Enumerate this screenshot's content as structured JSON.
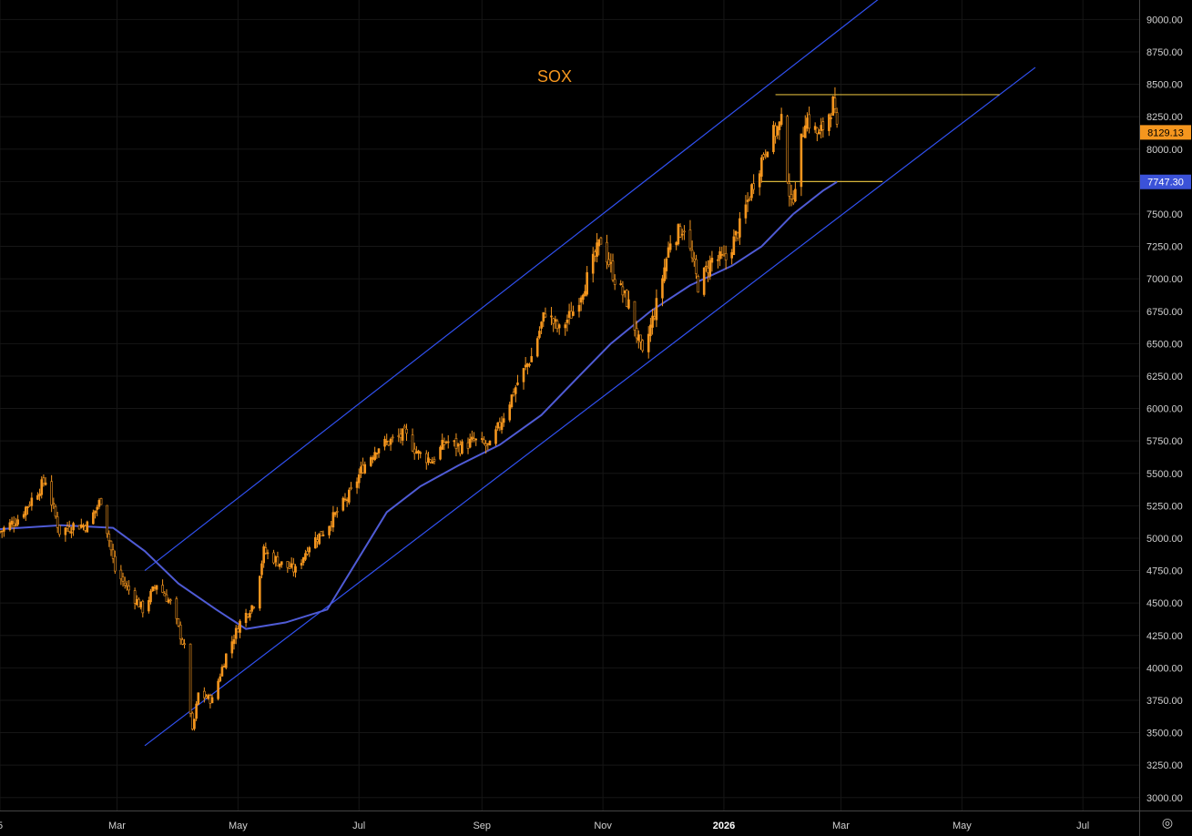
{
  "chart_data": {
    "type": "candlestick",
    "title": "SOX",
    "ylim": [
      2900,
      9150
    ],
    "y_ticks": [
      "3000.00",
      "3250.00",
      "3500.00",
      "3750.00",
      "4000.00",
      "4250.00",
      "4500.00",
      "4750.00",
      "5000.00",
      "5250.00",
      "5500.00",
      "5750.00",
      "6000.00",
      "6250.00",
      "6500.00",
      "6750.00",
      "7000.00",
      "7250.00",
      "7500.00",
      "7750.00",
      "8000.00",
      "8250.00",
      "8500.00",
      "8750.00",
      "9000.00"
    ],
    "x_range": [
      "2025-01-01",
      "2026-07-31"
    ],
    "x_ticks": [
      {
        "date": "2025-01-01",
        "label": "5",
        "bold": false
      },
      {
        "date": "2025-03-01",
        "label": "Mar",
        "bold": false
      },
      {
        "date": "2025-05-01",
        "label": "May",
        "bold": false
      },
      {
        "date": "2025-07-01",
        "label": "Jul",
        "bold": false
      },
      {
        "date": "2025-09-01",
        "label": "Sep",
        "bold": false
      },
      {
        "date": "2025-11-01",
        "label": "Nov",
        "bold": false
      },
      {
        "date": "2026-01-01",
        "label": "2026",
        "bold": true
      },
      {
        "date": "2026-03-01",
        "label": "Mar",
        "bold": false
      },
      {
        "date": "2026-05-01",
        "label": "May",
        "bold": false
      },
      {
        "date": "2026-07-01",
        "label": "Jul",
        "bold": false
      }
    ],
    "grid": true,
    "series": [
      {
        "kind": "price",
        "color": "#f5961e",
        "points": [
          [
            "2025-01-01",
            5050
          ],
          [
            "2025-01-10",
            5150
          ],
          [
            "2025-01-17",
            5300
          ],
          [
            "2025-01-24",
            5450
          ],
          [
            "2025-01-31",
            5050
          ],
          [
            "2025-02-07",
            5100
          ],
          [
            "2025-02-14",
            5100
          ],
          [
            "2025-02-21",
            5300
          ],
          [
            "2025-02-28",
            4750
          ],
          [
            "2025-03-07",
            4600
          ],
          [
            "2025-03-14",
            4450
          ],
          [
            "2025-03-21",
            4650
          ],
          [
            "2025-03-28",
            4500
          ],
          [
            "2025-04-04",
            4150
          ],
          [
            "2025-04-08",
            3500
          ],
          [
            "2025-04-11",
            3800
          ],
          [
            "2025-04-18",
            3750
          ],
          [
            "2025-04-25",
            4100
          ],
          [
            "2025-05-02",
            4350
          ],
          [
            "2025-05-09",
            4500
          ],
          [
            "2025-05-14",
            4900
          ],
          [
            "2025-05-23",
            4800
          ],
          [
            "2025-05-30",
            4750
          ],
          [
            "2025-06-06",
            4950
          ],
          [
            "2025-06-13",
            5050
          ],
          [
            "2025-06-20",
            5200
          ],
          [
            "2025-06-27",
            5350
          ],
          [
            "2025-07-03",
            5550
          ],
          [
            "2025-07-10",
            5700
          ],
          [
            "2025-07-17",
            5750
          ],
          [
            "2025-07-24",
            5800
          ],
          [
            "2025-07-31",
            5650
          ],
          [
            "2025-08-07",
            5600
          ],
          [
            "2025-08-14",
            5750
          ],
          [
            "2025-08-21",
            5700
          ],
          [
            "2025-08-28",
            5750
          ],
          [
            "2025-09-05",
            5700
          ],
          [
            "2025-09-12",
            5950
          ],
          [
            "2025-09-19",
            6200
          ],
          [
            "2025-09-26",
            6400
          ],
          [
            "2025-10-03",
            6750
          ],
          [
            "2025-10-10",
            6600
          ],
          [
            "2025-10-17",
            6750
          ],
          [
            "2025-10-24",
            7000
          ],
          [
            "2025-10-31",
            7300
          ],
          [
            "2025-11-07",
            7000
          ],
          [
            "2025-11-14",
            6800
          ],
          [
            "2025-11-21",
            6400
          ],
          [
            "2025-11-28",
            6800
          ],
          [
            "2025-12-05",
            7300
          ],
          [
            "2025-12-12",
            7400
          ],
          [
            "2025-12-19",
            6950
          ],
          [
            "2025-12-26",
            7150
          ],
          [
            "2026-01-02",
            7150
          ],
          [
            "2026-01-09",
            7400
          ],
          [
            "2026-01-16",
            7750
          ],
          [
            "2026-01-23",
            8050
          ],
          [
            "2026-01-30",
            8200
          ],
          [
            "2026-02-04",
            7550
          ],
          [
            "2026-02-11",
            8250
          ],
          [
            "2026-02-18",
            8100
          ],
          [
            "2026-02-25",
            8350
          ],
          [
            "2026-02-27",
            8129
          ]
        ]
      },
      {
        "kind": "moving-average",
        "color": "#4f5bd5",
        "points": [
          [
            "2025-01-01",
            5070
          ],
          [
            "2025-02-01",
            5100
          ],
          [
            "2025-02-27",
            5080
          ],
          [
            "2025-03-15",
            4900
          ],
          [
            "2025-04-01",
            4650
          ],
          [
            "2025-04-20",
            4450
          ],
          [
            "2025-05-05",
            4300
          ],
          [
            "2025-05-25",
            4350
          ],
          [
            "2025-06-15",
            4450
          ],
          [
            "2025-07-01",
            4850
          ],
          [
            "2025-07-15",
            5200
          ],
          [
            "2025-08-01",
            5400
          ],
          [
            "2025-08-20",
            5560
          ],
          [
            "2025-09-10",
            5720
          ],
          [
            "2025-10-01",
            5950
          ],
          [
            "2025-10-20",
            6250
          ],
          [
            "2025-11-05",
            6500
          ],
          [
            "2025-11-25",
            6750
          ],
          [
            "2025-12-15",
            6950
          ],
          [
            "2026-01-05",
            7100
          ],
          [
            "2026-01-20",
            7250
          ],
          [
            "2026-02-05",
            7500
          ],
          [
            "2026-02-20",
            7680
          ],
          [
            "2026-02-27",
            7747.3
          ]
        ]
      }
    ],
    "trendlines": [
      {
        "kind": "channel-upper",
        "color": "#3050f0",
        "from": [
          "2025-03-15",
          4750
        ],
        "to": [
          "2026-04-01",
          9300
        ]
      },
      {
        "kind": "channel-lower",
        "color": "#3050f0",
        "from": [
          "2025-03-15",
          3400
        ],
        "to": [
          "2026-06-07",
          8630
        ]
      },
      {
        "kind": "resistance",
        "color": "#d6b33a",
        "from": [
          "2026-01-27",
          8420
        ],
        "to": [
          "2026-05-20",
          8420
        ]
      },
      {
        "kind": "support",
        "color": "#d6b33a",
        "from": [
          "2026-01-20",
          7750
        ],
        "to": [
          "2026-03-22",
          7750
        ]
      }
    ],
    "price_labels": [
      {
        "value": 8129.13,
        "label": "8129.13",
        "color": "#f5961e",
        "text_color": "#000000"
      },
      {
        "value": 7747.3,
        "label": "7747.30",
        "color": "#3b52d8",
        "text_color": "#ffffff"
      }
    ]
  },
  "toolbar": {
    "settings_icon": "gear-icon",
    "settings_glyph": "◎"
  }
}
